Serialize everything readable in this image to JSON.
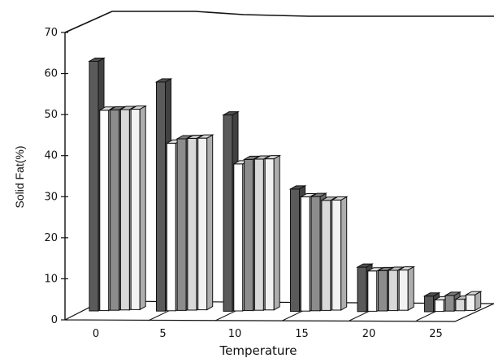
{
  "chart_data": {
    "type": "bar",
    "categories": [
      "0",
      "5",
      "10",
      "15",
      "20",
      "25"
    ],
    "series": [
      {
        "values": [
          62,
          57,
          49,
          31,
          12,
          5
        ],
        "color": "#5a5a5a"
      },
      {
        "values": [
          50,
          42,
          37,
          29,
          11,
          4
        ],
        "color": "#ffffff"
      },
      {
        "values": [
          50,
          43,
          38,
          29,
          11,
          5
        ],
        "color": "#8c8c8c"
      },
      {
        "values": [
          50,
          43,
          38,
          28,
          11,
          4
        ],
        "color": "#d9d9d9"
      },
      {
        "values": [
          50,
          43,
          38,
          28,
          11,
          5
        ],
        "color": "#f2f2f2"
      }
    ],
    "xlabel": "Temperature",
    "ylabel": "Solid Fat(%)",
    "ylim": [
      0,
      70
    ],
    "yticks": [
      "0",
      "10",
      "20",
      "30",
      "40",
      "50",
      "60",
      "70"
    ],
    "chart_style": "3d-bar"
  }
}
